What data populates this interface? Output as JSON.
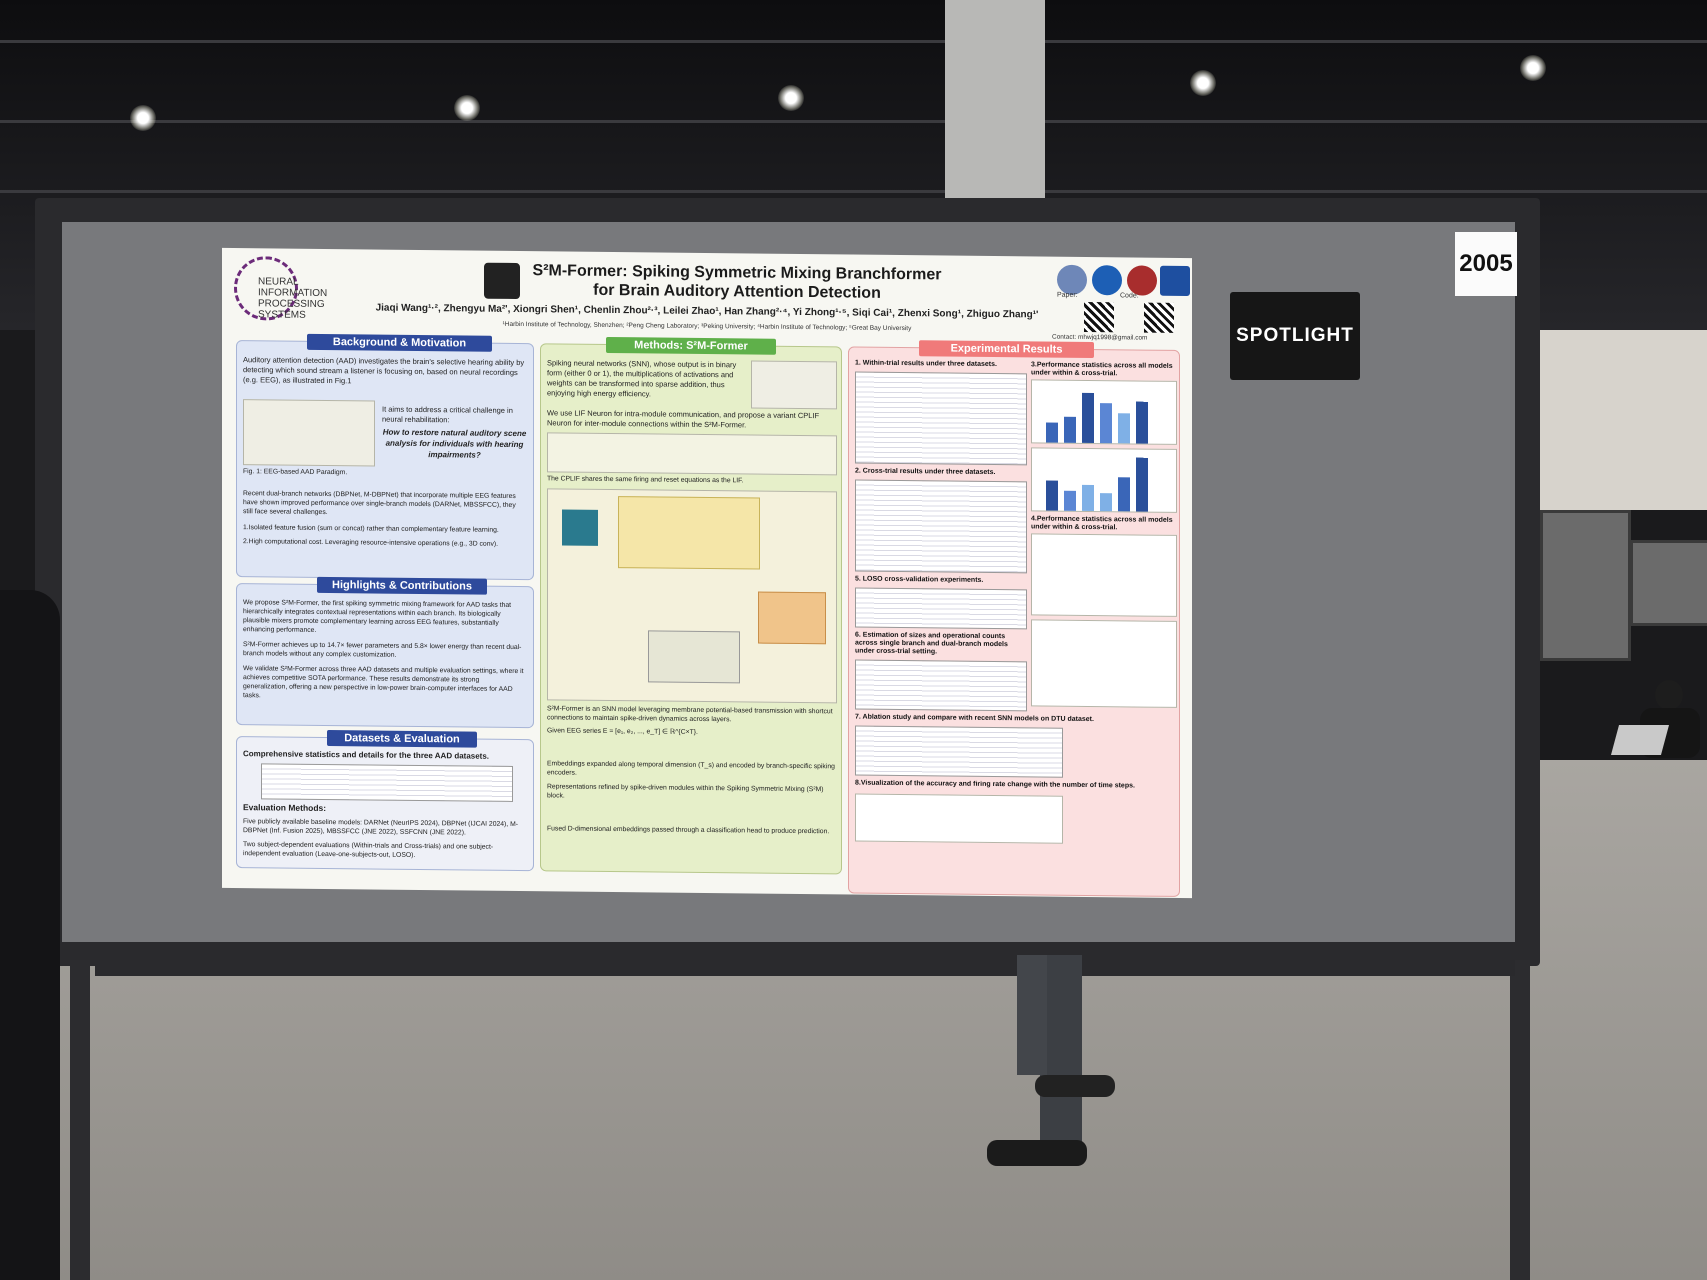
{
  "booth_number": "2005",
  "spotlight_label": "SPOTLIGHT",
  "poster": {
    "conference_logo_text": "NEURAL INFORMATION\nPROCESSING SYSTEMS",
    "title_line1": "S²M-Former: Spiking Symmetric Mixing Branchformer",
    "title_line2": "for Brain Auditory Attention Detection",
    "authors": "Jiaqi Wang¹·², Zhengyu Ma²', Xiongri Shen¹, Chenlin Zhou²·³, Leilei Zhao¹, Han Zhang²·⁴, Yi Zhong¹·⁵, Siqi Cai¹, Zhenxi Song¹, Zhiguo Zhang¹'",
    "affiliations": "¹Harbin Institute of Technology, Shenzhen; ²Peng Cheng Laboratory; ³Peking University; ⁴Harbin Institute of Technology; ⁵Great Bay University",
    "paper_label": "Paper:",
    "code_label": "Code:",
    "contact": "Contact: mhwjq1998@gmail.com",
    "sections": {
      "background": {
        "heading": "Background & Motivation",
        "text": "Auditory attention detection (AAD) investigates the brain's selective hearing ability by detecting which sound stream a listener is focusing on, based on neural recordings (e.g. EEG), as illustrated in Fig.1",
        "challenge_intro": "It aims to address a critical challenge in neural rehabilitation:",
        "question": "How to restore natural auditory scene analysis for individuals with hearing impairments?",
        "fig_caption": "Fig. 1: EEG-based AAD Paradigm.",
        "recent": "Recent dual-branch networks (DBPNet, M-DBPNet) that incorporate multiple EEG features have shown improved performance over single-branch models (DARNet, MBSSFCC), they still face several challenges.",
        "point1": "1.Isolated feature fusion (sum or concat) rather than complementary feature learning.",
        "point2": "2.High computational cost. Leveraging resource-intensive operations (e.g., 3D conv)."
      },
      "highlights": {
        "heading": "Highlights & Contributions",
        "item1": "We propose S²M-Former, the first spiking symmetric mixing framework for AAD tasks that hierarchically integrates contextual representations within each branch. Its biologically plausible mixers promote complementary learning across EEG features, substantially enhancing performance.",
        "item2": "S²M-Former achieves up to 14.7× fewer parameters and 5.8× lower energy than recent dual-branch models without any complex customization.",
        "item3": "We validate S²M-Former across three AAD datasets and multiple evaluation settings, where it achieves competitive SOTA performance. These results demonstrate its strong generalization, offering a new perspective in low-power brain-computer interfaces for AAD tasks."
      },
      "datasets": {
        "heading": "Datasets & Evaluation",
        "subheading": "Comprehensive statistics and details for the three AAD datasets.",
        "eval_heading": "Evaluation Methods:",
        "eval1": "Five publicly available baseline models: DARNet (NeurIPS 2024), DBPNet (IJCAI 2024), M-DBPNet (Inf. Fusion 2025), MBSSFCC (JNE 2022), SSFCNN (JNE 2022).",
        "eval2": "Two subject-dependent evaluations (Within-trials and Cross-trials) and one subject-independent evaluation (Leave-one-subjects-out, LOSO)."
      },
      "methods": {
        "heading": "Methods: S²M-Former",
        "intro": "Spiking neural networks (SNN), whose output is in binary form (either 0 or 1), the multiplications of activations and weights can be transformed into sparse addition, thus enjoying high energy efficiency.",
        "lif": "We use LIF Neuron for intra-module communication, and propose a variant CPLIF Neuron for inter-module connections within the S²M-Former.",
        "cplif_note": "The CPLIF shares the same firing and reset equations as the LIF.",
        "summary1": "S²M-Former is an SNN model leveraging membrane potential-based transmission with shortcut connections to maintain spike-driven dynamics across layers.",
        "summary2": "Given EEG series E = [e₁, e₂, ..., e_T] ∈ ℝ^{C×T}.",
        "summary3": "Embeddings expanded along temporal dimension (T_s) and encoded by branch-specific spiking encoders.",
        "summary4": "Representations refined by spike-driven modules within the Spiking Symmetric Mixing (S²M) block.",
        "summary5": "Fused D-dimensional embeddings passed through a classification head to produce prediction."
      },
      "results": {
        "heading": "Experimental Results",
        "r1": "1. Within-trial results under three datasets.",
        "r2": "2. Cross-trial results under three datasets.",
        "r3": "3.Performance statistics across all models under within & cross-trial.",
        "r4": "4.Performance statistics across all models under within & cross-trial.",
        "r5": "5. LOSO cross-validation experiments.",
        "r6": "6. Estimation of sizes and operational counts across single branch and dual-branch models under cross-trial setting.",
        "r7": "7. Ablation study and compare with recent SNN models on DTU dataset.",
        "r8": "8.Visualization of the accuracy and firing rate change with the number of time steps."
      }
    }
  },
  "colors": {
    "background_head": "#2e4a9c",
    "methods_head": "#5fb04a",
    "results_head": "#f07a7a",
    "background_panel": "#dfe6f5",
    "methods_panel": "#e6efc9",
    "results_panel": "#fbe0e0",
    "board": "#78797c",
    "frame": "#2a2a2d"
  }
}
